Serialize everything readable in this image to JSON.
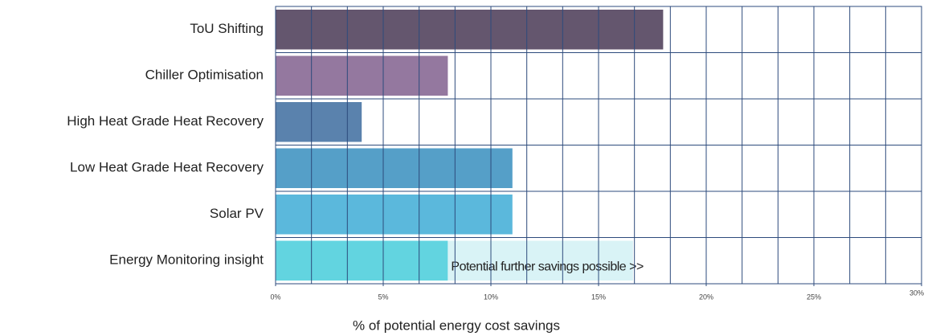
{
  "chart_data": {
    "type": "barh",
    "categories": [
      "ToU Shifting",
      "Chiller Optimisation",
      "High Heat Grade Heat Recovery",
      "Low Heat Grade Heat Recovery",
      "Solar PV",
      "Energy Monitoring insight"
    ],
    "values": [
      18,
      8,
      4,
      11,
      11,
      8
    ],
    "colors": [
      "#64566e",
      "#94789f",
      "#5a82ad",
      "#559fc8",
      "#5bb8dc",
      "#62d4e0"
    ],
    "xlabel": "% of potential energy cost savings",
    "xlim": [
      0,
      30
    ],
    "xticks": [
      {
        "value": 0,
        "label": "0%"
      },
      {
        "value": 5,
        "label": "5%"
      },
      {
        "value": 10,
        "label": "10%"
      },
      {
        "value": 15,
        "label": "15%"
      },
      {
        "value": 20,
        "label": "20%"
      },
      {
        "value": 25,
        "label": "25%"
      },
      {
        "value": 30,
        "label": "30%"
      }
    ],
    "xgrid": [
      1.667,
      3.333,
      5,
      6.667,
      8.333,
      10,
      11.667,
      13.333,
      15,
      16.667,
      18.333,
      20,
      21.667,
      23.333,
      25,
      26.667,
      28.333
    ],
    "grid": true,
    "annotation": {
      "text": "Potential further savings possible >>",
      "range": [
        8,
        16.6
      ],
      "color": "#d9f3f6",
      "text_color": "#2a5f95"
    }
  }
}
